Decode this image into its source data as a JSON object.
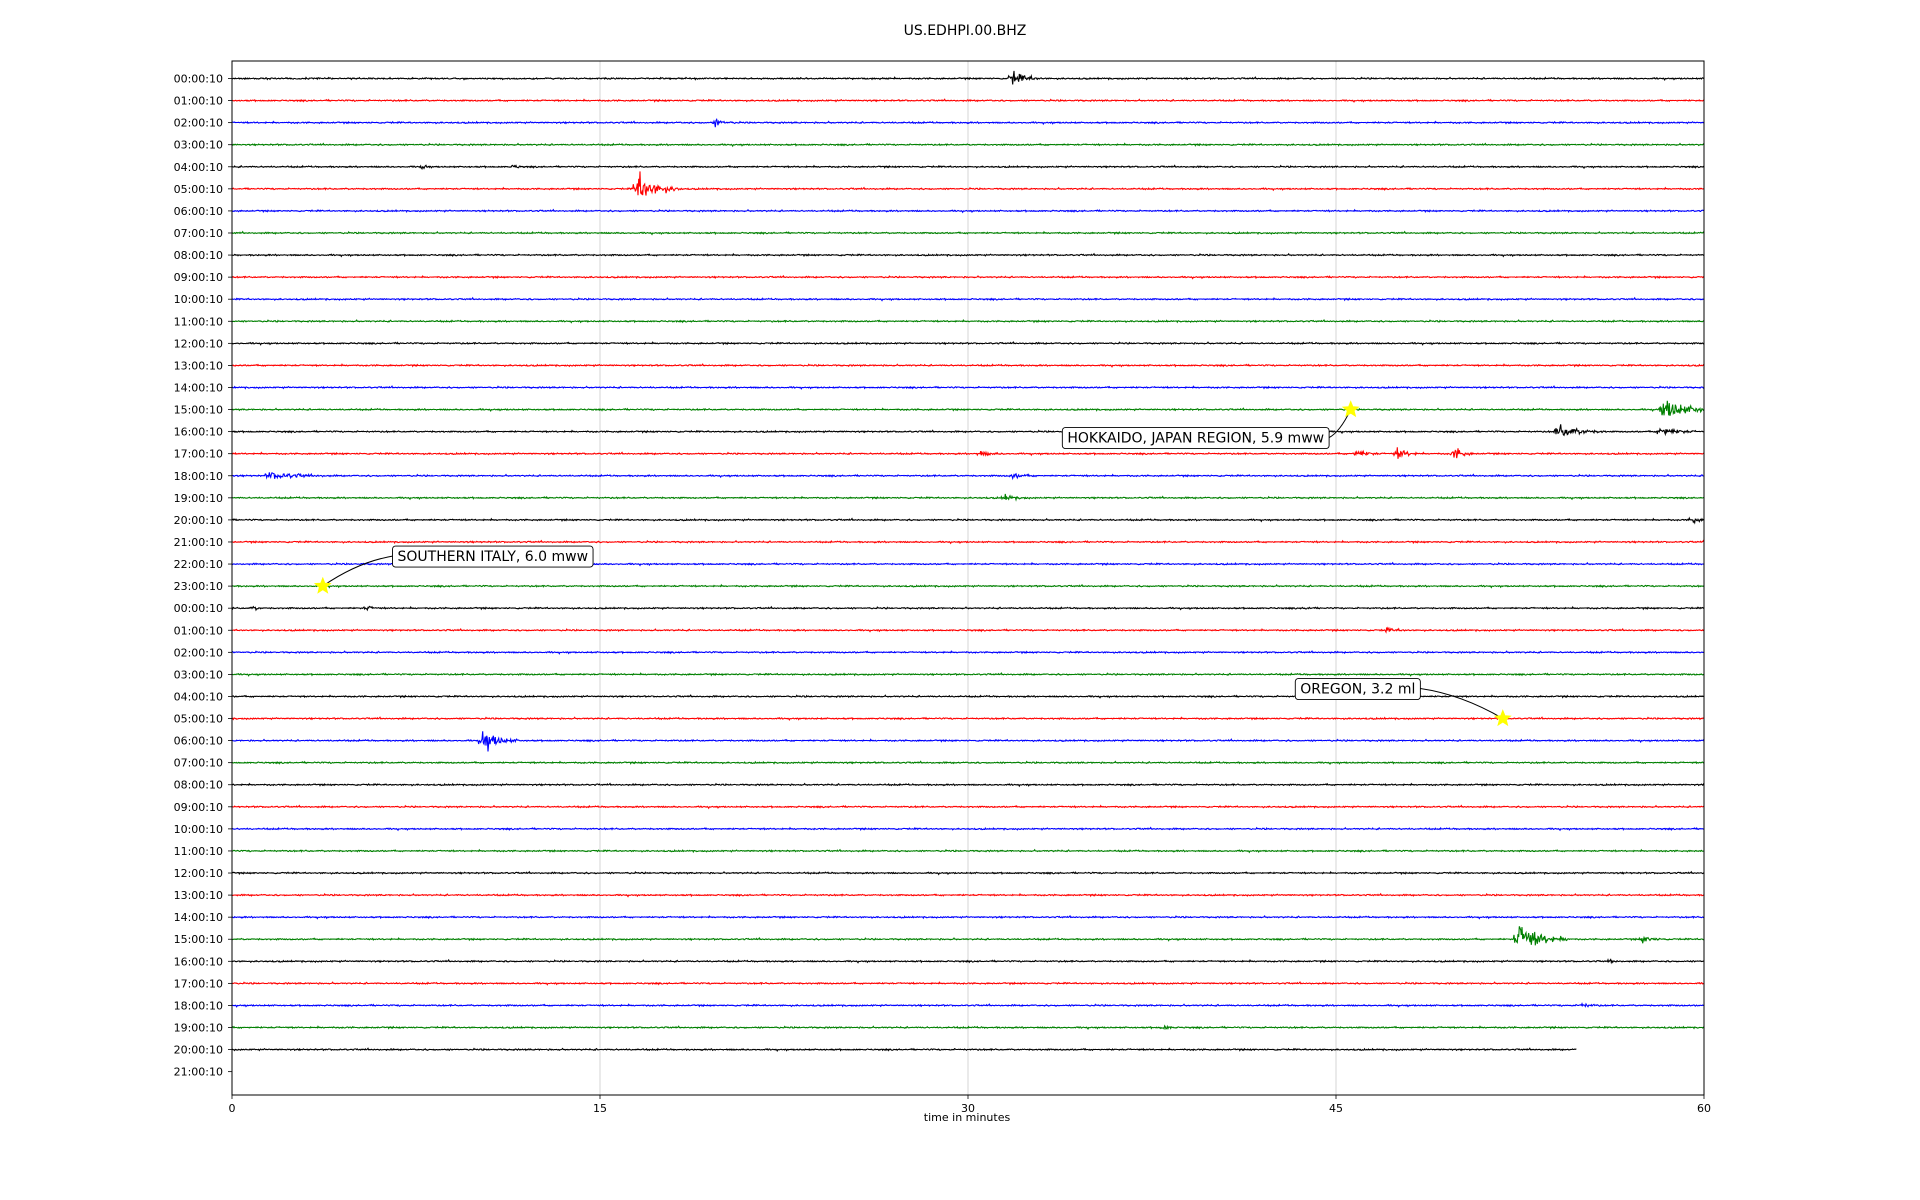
{
  "chart_data": {
    "type": "line",
    "title": "US.EDHPI.00.BHZ",
    "xlabel": "time in minutes",
    "ylabel": "",
    "xlim": [
      0,
      60
    ],
    "x_ticks": [
      0,
      15,
      30,
      45,
      60
    ],
    "grid": "vertical lines at each x tick",
    "trace_colors": [
      "#000000",
      "#ff0000",
      "#0000ff",
      "#008000"
    ],
    "row_labels": [
      "00:00:10",
      "01:00:10",
      "02:00:10",
      "03:00:10",
      "04:00:10",
      "05:00:10",
      "06:00:10",
      "07:00:10",
      "08:00:10",
      "09:00:10",
      "10:00:10",
      "11:00:10",
      "12:00:10",
      "13:00:10",
      "14:00:10",
      "15:00:10",
      "16:00:10",
      "17:00:10",
      "18:00:10",
      "19:00:10",
      "20:00:10",
      "21:00:10",
      "22:00:10",
      "23:00:10",
      "00:00:10",
      "01:00:10",
      "02:00:10",
      "03:00:10",
      "04:00:10",
      "05:00:10",
      "06:00:10",
      "07:00:10",
      "08:00:10",
      "09:00:10",
      "10:00:10",
      "11:00:10",
      "12:00:10",
      "13:00:10",
      "14:00:10",
      "15:00:10",
      "16:00:10",
      "17:00:10",
      "18:00:10",
      "19:00:10",
      "20:00:10",
      "21:00:10"
    ],
    "data_end": {
      "row": 44,
      "minute": 54.8
    },
    "events": [
      {
        "row": 0,
        "minute": 31.8,
        "amp": 1.3,
        "dur": 1.2
      },
      {
        "row": 2,
        "minute": 19.7,
        "amp": 0.6,
        "dur": 0.8
      },
      {
        "row": 4,
        "minute": 7.8,
        "amp": 0.6,
        "dur": 0.3
      },
      {
        "row": 4,
        "minute": 11.5,
        "amp": 0.5,
        "dur": 0.3
      },
      {
        "row": 5,
        "minute": 16.5,
        "amp": 2.6,
        "dur": 1.8
      },
      {
        "row": 15,
        "minute": 58.3,
        "amp": 1.8,
        "dur": 2.5
      },
      {
        "row": 16,
        "minute": 54,
        "amp": 1.2,
        "dur": 2.0
      },
      {
        "row": 16,
        "minute": 58.2,
        "amp": 0.9,
        "dur": 1.5
      },
      {
        "row": 17,
        "minute": 45.8,
        "amp": 0.8,
        "dur": 1.0
      },
      {
        "row": 17,
        "minute": 47.5,
        "amp": 0.9,
        "dur": 1.0
      },
      {
        "row": 17,
        "minute": 49.8,
        "amp": 1.1,
        "dur": 0.8
      },
      {
        "row": 17,
        "minute": 30.5,
        "amp": 0.4,
        "dur": 1.0
      },
      {
        "row": 18,
        "minute": 1.5,
        "amp": 0.6,
        "dur": 2.5
      },
      {
        "row": 18,
        "minute": 31.8,
        "amp": 0.4,
        "dur": 1.0
      },
      {
        "row": 19,
        "minute": 31.5,
        "amp": 0.4,
        "dur": 1.0
      },
      {
        "row": 20,
        "minute": 59.5,
        "amp": 0.7,
        "dur": 0.6
      },
      {
        "row": 24,
        "minute": 0.9,
        "amp": 0.5,
        "dur": 0.3
      },
      {
        "row": 24,
        "minute": 5.5,
        "amp": 0.4,
        "dur": 0.5
      },
      {
        "row": 24,
        "minute": 43.8,
        "amp": 0.4,
        "dur": 0.3
      },
      {
        "row": 25,
        "minute": 47,
        "amp": 0.4,
        "dur": 1.0
      },
      {
        "row": 30,
        "minute": 10.2,
        "amp": 1.8,
        "dur": 1.5
      },
      {
        "row": 39,
        "minute": 52.4,
        "amp": 2.6,
        "dur": 2.2
      },
      {
        "row": 39,
        "minute": 57.5,
        "amp": 0.5,
        "dur": 1.0
      },
      {
        "row": 40,
        "minute": 56.2,
        "amp": 0.4,
        "dur": 0.4
      },
      {
        "row": 42,
        "minute": 55,
        "amp": 0.4,
        "dur": 0.8
      },
      {
        "row": 43,
        "minute": 38,
        "amp": 0.4,
        "dur": 0.5
      }
    ],
    "annotations": [
      {
        "text": "HOKKAIDO, JAPAN REGION, 5.9 mww",
        "row": 15,
        "minute": 45.6
      },
      {
        "text": "SOUTHERN ITALY, 6.0 mww",
        "row": 23,
        "minute": 3.7
      },
      {
        "text": "OREGON, 3.2 ml",
        "row": 29,
        "minute": 51.8
      }
    ],
    "star_color": "#ffff00"
  }
}
